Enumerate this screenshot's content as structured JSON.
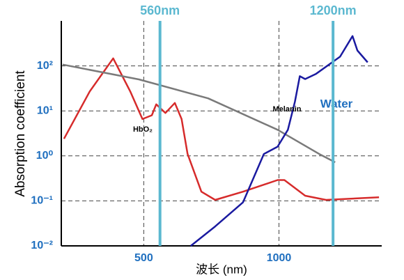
{
  "chart_data": {
    "type": "line",
    "x_label": "波长 (nm)",
    "y_label": "Absorption  coefficient",
    "xlim": [
      195,
      1380
    ],
    "xticks": [
      500,
      1000
    ],
    "ylim": [
      0.01,
      1000
    ],
    "log_y": true,
    "grid": true,
    "yticks": [
      {
        "value": 0.01,
        "label": "10⁻²"
      },
      {
        "value": 0.1,
        "label": "10⁻¹"
      },
      {
        "value": 1,
        "label": "10⁰"
      },
      {
        "value": 10,
        "label": "10¹"
      },
      {
        "value": 100,
        "label": "10²"
      }
    ],
    "marker_lines": [
      {
        "value": 560,
        "label": "560nm"
      },
      {
        "value": 1200,
        "label": "1200nm"
      }
    ],
    "marker_color": "#5bb8d0",
    "series": [
      {
        "name": "HbO₂",
        "color": "#d62b2b",
        "x": [
          205,
          300,
          387,
          450,
          495,
          530,
          546,
          580,
          615,
          640,
          662,
          713,
          764,
          867,
          995,
          1020,
          1097,
          1174,
          1370
        ],
        "values": [
          2.4,
          27,
          147,
          27,
          6.6,
          8,
          14,
          9,
          15,
          6.6,
          1.1,
          0.16,
          0.105,
          0.16,
          0.29,
          0.29,
          0.13,
          0.105,
          0.12
        ]
      },
      {
        "name": "Melanin",
        "color": "#7a7a7a",
        "x": [
          200,
          482,
          738,
          995,
          1149,
          1208
        ],
        "values": [
          107,
          50,
          19,
          3.8,
          1.1,
          0.72
        ]
      },
      {
        "name": "Water",
        "color": "#1a1aa0",
        "x": [
          674,
          764,
          867,
          944,
          995,
          1033,
          1059,
          1077,
          1097,
          1136,
          1226,
          1272,
          1290,
          1328
        ],
        "values": [
          0.01,
          0.027,
          0.093,
          1.1,
          1.6,
          3.8,
          16,
          59,
          51,
          66,
          160,
          460,
          220,
          120
        ]
      }
    ]
  }
}
